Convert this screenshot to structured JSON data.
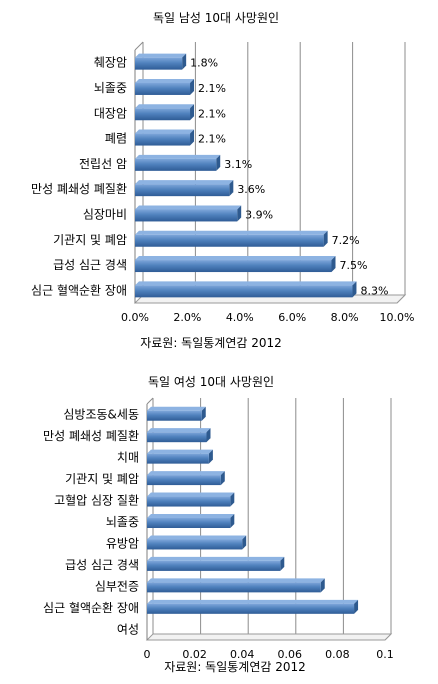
{
  "chart_data": [
    {
      "type": "bar",
      "orientation": "horizontal",
      "title": "독일 남성 10대 사망원인",
      "source": "자료원: 독일통계연감 2012",
      "categories": [
        "췌장암",
        "뇌졸중",
        "대장암",
        "폐렴",
        "전립선 암",
        "만성 폐쇄성 폐질환",
        "심장마비",
        "기관지 및 폐암",
        "급성 심근 경색",
        "심근 혈액순환 장애"
      ],
      "values": [
        1.8,
        2.1,
        2.1,
        2.1,
        3.1,
        3.6,
        3.9,
        7.2,
        7.5,
        8.3
      ],
      "data_labels": [
        "1.8%",
        "2.1%",
        "2.1%",
        "2.1%",
        "3.1%",
        "3.6%",
        "3.9%",
        "7.2%",
        "7.5%",
        "8.3%"
      ],
      "xlim": [
        0,
        10
      ],
      "xticks": [
        0,
        2,
        4,
        6,
        8,
        10
      ],
      "xtick_labels": [
        "0.0%",
        "2.0%",
        "4.0%",
        "6.0%",
        "8.0%",
        "10.0%"
      ],
      "grid": true,
      "bar_color": "#4F81BD"
    },
    {
      "type": "bar",
      "orientation": "horizontal",
      "title": "독일 여성 10대 사망원인",
      "source": "자료원: 독일통계연감 2012",
      "categories": [
        "심방조동&세동",
        "만성 폐쇄성 폐질환",
        "치매",
        "기관지 및 폐암",
        "고혈압 심장 질환",
        "뇌졸중",
        "유방암",
        "급성 심근 경색",
        "심부전증",
        "심근 혈액순환 장애",
        "여성"
      ],
      "values": [
        0.023,
        0.025,
        0.026,
        0.031,
        0.035,
        0.035,
        0.04,
        0.056,
        0.073,
        0.087,
        null
      ],
      "xlim": [
        0,
        0.1
      ],
      "xticks": [
        0,
        0.02,
        0.04,
        0.06,
        0.08,
        0.1
      ],
      "xtick_labels": [
        "0",
        "0.02",
        "0.04",
        "0.06",
        "0.08",
        "0.1"
      ],
      "grid": true,
      "bar_color": "#4F81BD"
    }
  ]
}
